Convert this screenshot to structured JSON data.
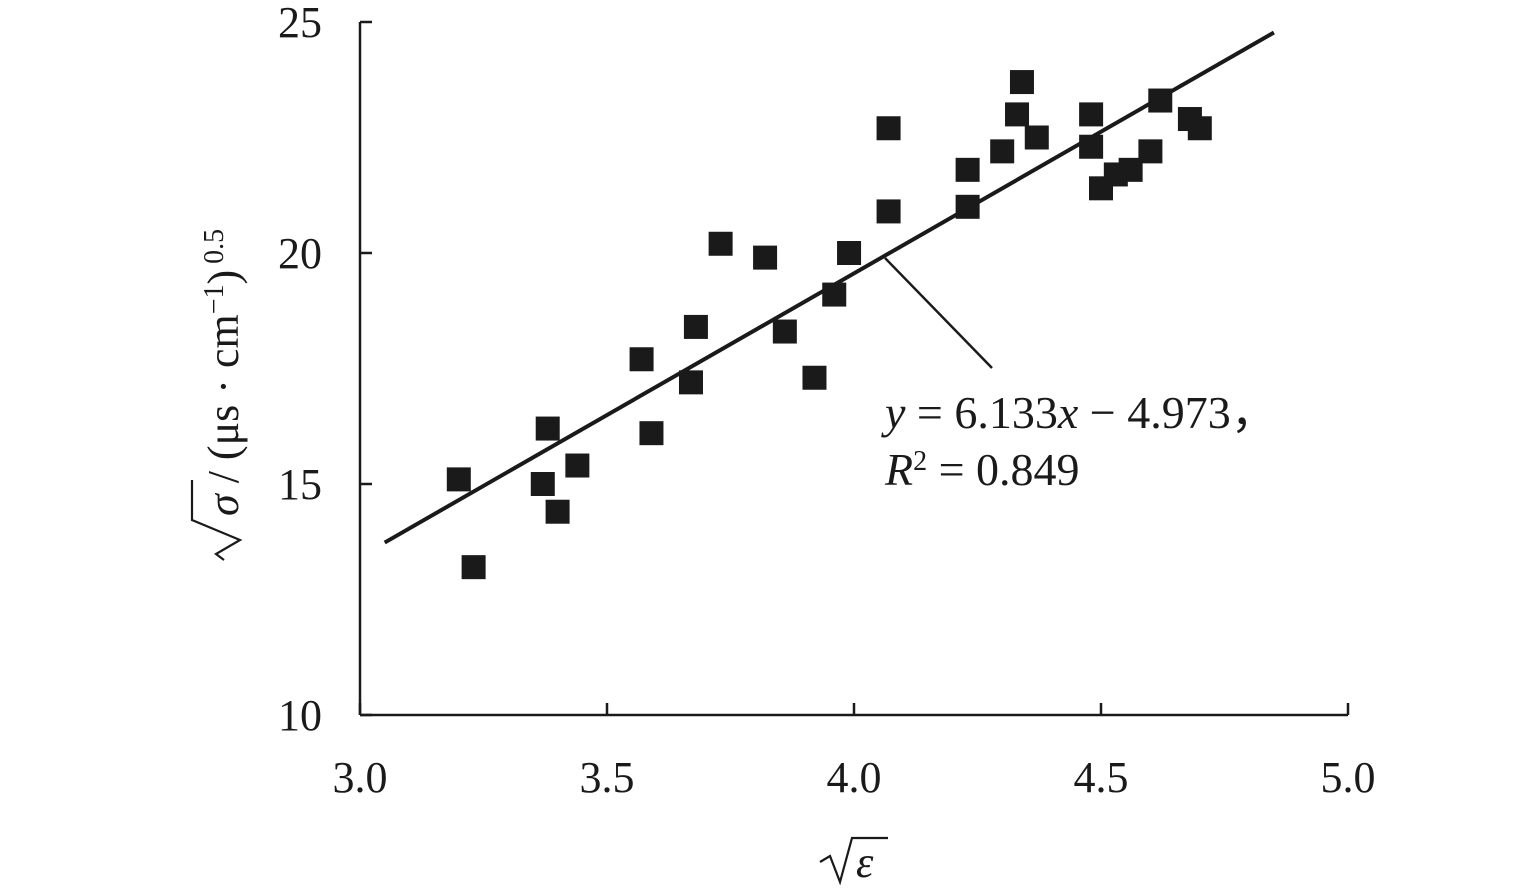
{
  "chart_data": {
    "type": "scatter",
    "xlabel": "√ε",
    "ylabel": "√σ / (μs · cm⁻¹) 0.5",
    "xlim": [
      3.0,
      5.0
    ],
    "ylim": [
      10,
      25
    ],
    "x_ticks": [
      "3.0",
      "3.5",
      "4.0",
      "4.5",
      "5.0"
    ],
    "y_ticks": [
      "10",
      "15",
      "20",
      "25"
    ],
    "grid": false,
    "legend": "none",
    "series": [
      {
        "x": [
          3.2,
          3.23,
          3.37,
          3.38,
          3.4,
          3.44,
          3.57,
          3.59,
          3.67,
          3.68,
          3.73,
          3.82,
          3.86,
          3.92,
          3.96,
          3.99,
          4.07,
          4.07,
          4.23,
          4.23,
          4.3,
          4.33,
          4.34,
          4.37,
          4.48,
          4.48,
          4.5,
          4.53,
          4.56,
          4.6,
          4.62,
          4.68,
          4.7
        ],
        "y": [
          15.1,
          13.2,
          15.0,
          16.2,
          14.4,
          15.4,
          17.7,
          16.1,
          17.2,
          18.4,
          20.2,
          19.9,
          18.3,
          17.3,
          19.1,
          20.0,
          22.7,
          20.9,
          21.8,
          21.0,
          22.2,
          23.0,
          23.7,
          22.5,
          22.3,
          23.0,
          21.4,
          21.7,
          21.8,
          22.2,
          23.3,
          22.9,
          22.7
        ]
      }
    ],
    "trendline": {
      "slope": 6.133,
      "intercept": -4.973,
      "x_range": [
        3.05,
        4.85
      ]
    },
    "annotation": {
      "equation": "y = 6.133x − 4.973，",
      "r2": "R² = 0.849"
    }
  }
}
